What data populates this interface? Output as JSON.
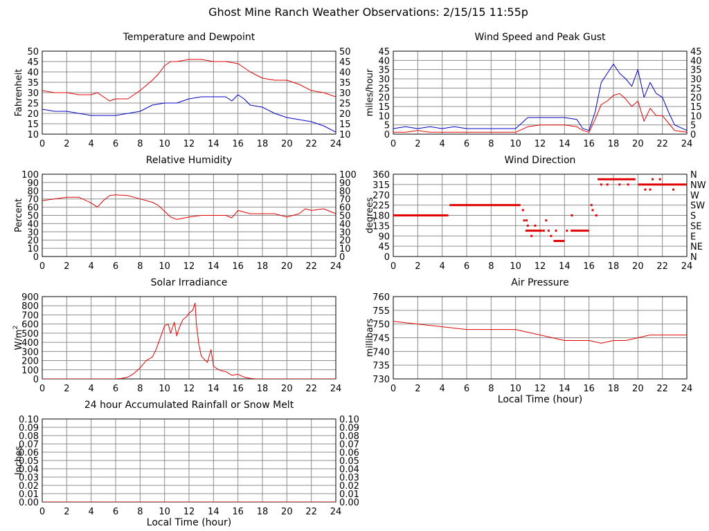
{
  "page_title": "Ghost Mine Ranch Weather Observations: 2/15/15 11:55p",
  "colors": {
    "red": "#e00000",
    "blue": "#0000c8",
    "grid": "#8c8c8c",
    "frame": "#000000"
  },
  "chart_data": [
    {
      "id": "temp",
      "type": "line",
      "title": "Temperature and Dewpoint",
      "ylabel": "Fahrenheit",
      "xlabel": "",
      "xlim": [
        0,
        24
      ],
      "ylim": [
        10,
        50
      ],
      "xticks": [
        0,
        2,
        4,
        6,
        8,
        10,
        12,
        14,
        16,
        18,
        20,
        22,
        24
      ],
      "yticks": [
        10,
        15,
        20,
        25,
        30,
        35,
        40,
        45,
        50
      ],
      "right_ticks": [
        "10",
        "15",
        "20",
        "25",
        "30",
        "35",
        "40",
        "45",
        "50"
      ],
      "series": [
        {
          "color": "red",
          "x": [
            0,
            1,
            2,
            3,
            4,
            4.5,
            5,
            5.5,
            6,
            7,
            8,
            9,
            9.5,
            10,
            10.5,
            11,
            12,
            13,
            14,
            15,
            16,
            17,
            18,
            19,
            20,
            21,
            22,
            23,
            24
          ],
          "values": [
            31,
            30,
            30,
            29,
            29,
            30,
            28,
            26,
            27,
            27,
            31,
            36,
            39,
            43,
            45,
            45,
            46,
            46,
            45,
            45,
            44,
            40,
            37,
            36,
            36,
            34,
            31,
            30,
            28
          ]
        },
        {
          "color": "blue",
          "x": [
            0,
            1,
            2,
            3,
            4,
            5,
            6,
            7,
            8,
            9,
            10,
            11,
            12,
            13,
            14,
            15,
            15.5,
            16,
            16.5,
            17,
            18,
            19,
            20,
            21,
            22,
            23,
            24
          ],
          "values": [
            22,
            21,
            21,
            20,
            19,
            19,
            19,
            20,
            21,
            24,
            25,
            25,
            27,
            28,
            28,
            28,
            26,
            29,
            27,
            24,
            23,
            20,
            18,
            17,
            16,
            14,
            11
          ]
        }
      ]
    },
    {
      "id": "wind",
      "type": "line",
      "title": "Wind Speed and Peak Gust",
      "ylabel": "miles/hour",
      "xlabel": "",
      "xlim": [
        0,
        24
      ],
      "ylim": [
        0,
        45
      ],
      "xticks": [
        0,
        2,
        4,
        6,
        8,
        10,
        12,
        14,
        16,
        18,
        20,
        22,
        24
      ],
      "yticks": [
        0,
        5,
        10,
        15,
        20,
        25,
        30,
        35,
        40,
        45
      ],
      "right_ticks": [
        "0",
        "5",
        "10",
        "15",
        "20",
        "25",
        "30",
        "35",
        "40",
        "45"
      ],
      "series": [
        {
          "color": "blue",
          "x": [
            0,
            1,
            2,
            3,
            4,
            5,
            6,
            7,
            8,
            9,
            10,
            10.5,
            11,
            12,
            13,
            14,
            15,
            15.5,
            16,
            16.5,
            17,
            17.5,
            18,
            18.5,
            19,
            19.5,
            20,
            20.5,
            21,
            21.5,
            22,
            22.5,
            23,
            24
          ],
          "values": [
            3,
            4,
            3,
            4,
            3,
            4,
            3,
            3,
            3,
            3,
            3,
            6,
            9,
            9,
            9,
            9,
            8,
            3,
            2,
            12,
            28,
            33,
            38,
            33,
            30,
            26,
            35,
            20,
            28,
            22,
            20,
            12,
            5,
            2
          ]
        },
        {
          "color": "red",
          "x": [
            0,
            1,
            2,
            3,
            4,
            5,
            6,
            7,
            8,
            9,
            10,
            11,
            12,
            13,
            14,
            15,
            15.5,
            16,
            16.5,
            17,
            17.5,
            18,
            18.5,
            19,
            19.5,
            20,
            20.5,
            21,
            21.5,
            22,
            22.5,
            23,
            24
          ],
          "values": [
            1,
            1,
            2,
            1,
            1,
            1,
            1,
            1,
            1,
            1,
            1,
            4,
            5,
            5,
            5,
            4,
            2,
            1,
            8,
            16,
            18,
            21,
            22,
            19,
            15,
            18,
            7,
            14,
            10,
            10,
            6,
            2,
            1
          ]
        }
      ]
    },
    {
      "id": "rh",
      "type": "line",
      "title": "Relative Humidity",
      "ylabel": "Percent",
      "xlabel": "",
      "xlim": [
        0,
        24
      ],
      "ylim": [
        0,
        100
      ],
      "xticks": [
        0,
        2,
        4,
        6,
        8,
        10,
        12,
        14,
        16,
        18,
        20,
        22,
        24
      ],
      "yticks": [
        0,
        10,
        20,
        30,
        40,
        50,
        60,
        70,
        80,
        90,
        100
      ],
      "right_ticks": [
        "0",
        "10",
        "20",
        "30",
        "40",
        "50",
        "60",
        "70",
        "80",
        "90",
        "100"
      ],
      "series": [
        {
          "color": "red",
          "x": [
            0,
            1,
            2,
            3,
            4,
            4.5,
            5,
            5.5,
            6,
            7,
            8,
            9,
            9.5,
            10,
            10.5,
            11,
            12,
            13,
            14,
            15,
            15.5,
            16,
            17,
            18,
            19,
            20,
            21,
            21.5,
            22,
            23,
            24
          ],
          "values": [
            68,
            70,
            72,
            72,
            65,
            60,
            68,
            74,
            75,
            74,
            70,
            66,
            62,
            55,
            48,
            45,
            48,
            50,
            50,
            50,
            47,
            56,
            52,
            52,
            52,
            48,
            52,
            58,
            56,
            58,
            52
          ]
        }
      ]
    },
    {
      "id": "wdir",
      "type": "scatter",
      "title": "Wind Direction",
      "ylabel": "degrees",
      "xlabel": "",
      "xlim": [
        0,
        24
      ],
      "ylim": [
        0,
        360
      ],
      "xticks": [
        0,
        2,
        4,
        6,
        8,
        10,
        12,
        14,
        16,
        18,
        20,
        22,
        24
      ],
      "yticks": [
        0,
        45,
        90,
        135,
        180,
        225,
        270,
        315,
        360
      ],
      "right_ticks": [
        "N",
        "NE",
        "E",
        "SE",
        "S",
        "SW",
        "W",
        "NW",
        "N"
      ],
      "segments": [
        {
          "x0": 0,
          "x1": 4.5,
          "y": 180
        },
        {
          "x0": 4.6,
          "x1": 10.4,
          "y": 225
        },
        {
          "x0": 10.8,
          "x1": 12.2,
          "y": 113
        },
        {
          "x0": 13.1,
          "x1": 14.0,
          "y": 68
        },
        {
          "x0": 14.5,
          "x1": 16.0,
          "y": 113
        },
        {
          "x0": 16.7,
          "x1": 19.8,
          "y": 338
        },
        {
          "x0": 20.0,
          "x1": 24.0,
          "y": 315
        }
      ],
      "points": [
        {
          "x": 10.6,
          "y": 203
        },
        {
          "x": 10.7,
          "y": 158
        },
        {
          "x": 10.9,
          "y": 158
        },
        {
          "x": 11.0,
          "y": 135
        },
        {
          "x": 11.3,
          "y": 90
        },
        {
          "x": 11.6,
          "y": 135
        },
        {
          "x": 12.3,
          "y": 113
        },
        {
          "x": 12.5,
          "y": 158
        },
        {
          "x": 12.7,
          "y": 113
        },
        {
          "x": 12.9,
          "y": 90
        },
        {
          "x": 13.3,
          "y": 113
        },
        {
          "x": 14.2,
          "y": 113
        },
        {
          "x": 14.6,
          "y": 180
        },
        {
          "x": 16.2,
          "y": 225
        },
        {
          "x": 16.3,
          "y": 203
        },
        {
          "x": 16.6,
          "y": 180
        },
        {
          "x": 17.0,
          "y": 315
        },
        {
          "x": 17.5,
          "y": 315
        },
        {
          "x": 18.5,
          "y": 315
        },
        {
          "x": 19.2,
          "y": 315
        },
        {
          "x": 20.6,
          "y": 293
        },
        {
          "x": 21.0,
          "y": 293
        },
        {
          "x": 21.2,
          "y": 338
        },
        {
          "x": 21.8,
          "y": 338
        },
        {
          "x": 22.9,
          "y": 293
        }
      ]
    },
    {
      "id": "solar",
      "type": "line",
      "title": "Solar Irradiance",
      "ylabel": "W/m",
      "ylabel_sup": "2",
      "xlabel": "",
      "xlim": [
        0,
        24
      ],
      "ylim": [
        0,
        900
      ],
      "xticks": [
        0,
        2,
        4,
        6,
        8,
        10,
        12,
        14,
        16,
        18,
        20,
        22,
        24
      ],
      "yticks": [
        0,
        100,
        200,
        300,
        400,
        500,
        600,
        700,
        800,
        900
      ],
      "right_ticks": [],
      "series": [
        {
          "color": "red",
          "x": [
            0,
            6,
            6.5,
            7,
            7.5,
            8,
            8.5,
            9,
            9.3,
            9.6,
            10,
            10.3,
            10.5,
            10.8,
            11,
            11.2,
            11.5,
            11.8,
            12,
            12.3,
            12.5,
            12.6,
            12.8,
            13,
            13.2,
            13.5,
            13.8,
            14,
            14.3,
            14.6,
            15,
            15.5,
            16,
            16.5,
            17,
            17.5,
            18,
            24
          ],
          "values": [
            0,
            0,
            5,
            20,
            60,
            120,
            200,
            240,
            320,
            430,
            580,
            600,
            500,
            620,
            470,
            560,
            650,
            680,
            720,
            750,
            830,
            600,
            380,
            250,
            220,
            180,
            320,
            140,
            110,
            90,
            80,
            40,
            50,
            20,
            5,
            0,
            0,
            0
          ]
        }
      ]
    },
    {
      "id": "pressure",
      "type": "line",
      "title": "Air Pressure",
      "ylabel": "millibars",
      "xlabel": "Local Time (hour)",
      "xlim": [
        0,
        24
      ],
      "ylim": [
        730,
        760
      ],
      "xticks": [
        0,
        2,
        4,
        6,
        8,
        10,
        12,
        14,
        16,
        18,
        20,
        22,
        24
      ],
      "yticks": [
        730,
        735,
        740,
        745,
        750,
        755,
        760
      ],
      "right_ticks": [],
      "series": [
        {
          "color": "red",
          "x": [
            0,
            2,
            4,
            6,
            8,
            10,
            11,
            12,
            13,
            14,
            15,
            16,
            17,
            18,
            19,
            20,
            21,
            22,
            23,
            24
          ],
          "values": [
            751,
            750,
            749,
            748,
            748,
            748,
            747,
            746,
            745,
            744,
            744,
            744,
            743,
            744,
            744,
            745,
            746,
            746,
            746,
            746
          ]
        }
      ]
    },
    {
      "id": "rain",
      "type": "line",
      "title": "24 hour Accumulated Rainfall or Snow Melt",
      "ylabel": "Inches",
      "xlabel": "Local Time (hour)",
      "xlim": [
        0,
        24
      ],
      "ylim": [
        0,
        0.1
      ],
      "xticks": [
        0,
        2,
        4,
        6,
        8,
        10,
        12,
        14,
        16,
        18,
        20,
        22,
        24
      ],
      "yticks": [
        0,
        0.01,
        0.02,
        0.03,
        0.04,
        0.05,
        0.06,
        0.07,
        0.08,
        0.09,
        0.1
      ],
      "ytick_labels": [
        "0.00",
        "0.01",
        "0.02",
        "0.03",
        "0.04",
        "0.05",
        "0.06",
        "0.07",
        "0.08",
        "0.09",
        "0.10"
      ],
      "right_ticks": [
        "0.00",
        "0.01",
        "0.02",
        "0.03",
        "0.04",
        "0.05",
        "0.06",
        "0.07",
        "0.08",
        "0.09",
        "0.10"
      ],
      "series": [
        {
          "color": "red",
          "x": [
            0,
            24
          ],
          "values": [
            0,
            0
          ]
        }
      ]
    }
  ]
}
